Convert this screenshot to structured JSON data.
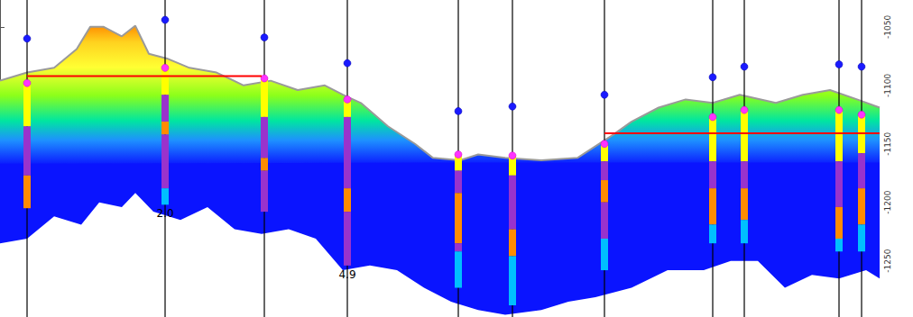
{
  "chart_data": {
    "type": "cross_section",
    "xlim": [
      0,
      975
    ],
    "ylim": [
      -1298,
      -1027
    ],
    "yticks": [
      -1050,
      -1100,
      -1150,
      -1200,
      -1250
    ],
    "tick_labels": "y",
    "grid": false,
    "top_surface": {
      "color": "#9a9a9a",
      "x": [
        0,
        30,
        60,
        85,
        100,
        115,
        135,
        150,
        165,
        185,
        210,
        240,
        270,
        300,
        330,
        360,
        380,
        400,
        430,
        460,
        480,
        510,
        530,
        560,
        600,
        640,
        680,
        700,
        730,
        760,
        790,
        820,
        860,
        890,
        920,
        950,
        975
      ],
      "values": [
        -1096,
        -1089,
        -1085,
        -1069,
        -1050,
        -1050,
        -1058,
        -1049,
        -1073,
        -1077,
        -1085,
        -1089,
        -1100,
        -1096,
        -1104,
        -1100,
        -1108,
        -1115,
        -1135,
        -1150,
        -1162,
        -1164,
        -1159,
        -1162,
        -1164,
        -1162,
        -1142,
        -1131,
        -1119,
        -1112,
        -1115,
        -1108,
        -1115,
        -1108,
        -1104,
        -1112,
        -1119
      ]
    },
    "band_base": {
      "color": "#0a14ff",
      "x": [
        0,
        480,
        975
      ],
      "values": [
        -1167,
        -1166,
        -1166
      ]
    },
    "section_base": {
      "color": "#ffffff",
      "x": [
        0,
        30,
        60,
        90,
        110,
        135,
        150,
        170,
        200,
        230,
        260,
        290,
        320,
        350,
        380,
        410,
        440,
        470,
        500,
        530,
        560,
        600,
        630,
        660,
        700,
        740,
        780,
        810,
        840,
        870,
        900,
        930,
        960,
        975
      ],
      "values": [
        -1235,
        -1231,
        -1212,
        -1219,
        -1200,
        -1204,
        -1192,
        -1208,
        -1215,
        -1204,
        -1223,
        -1227,
        -1223,
        -1231,
        -1258,
        -1254,
        -1258,
        -1273,
        -1285,
        -1292,
        -1296,
        -1292,
        -1285,
        -1281,
        -1273,
        -1258,
        -1258,
        -1250,
        -1250,
        -1273,
        -1262,
        -1265,
        -1258,
        -1265
      ]
    },
    "contacts": [
      {
        "color": "#ff0000",
        "x": [
          30,
          290
        ],
        "values": [
          -1092,
          -1092
        ]
      },
      {
        "color": "#ff0000",
        "x": [
          670,
          975
        ],
        "values": [
          -1141,
          -1141
        ]
      }
    ],
    "wells": [
      {
        "x": 30,
        "marker": -1060,
        "pick": -1098,
        "zones": [
          {
            "top": -1098,
            "base": -1135,
            "color": "#ffff00"
          },
          {
            "top": -1135,
            "base": -1177,
            "color": "#9933cc"
          },
          {
            "top": -1177,
            "base": -1205,
            "color": "#ff8c00"
          }
        ]
      },
      {
        "x": 183,
        "marker": -1044,
        "pick": -1085,
        "label": "2.0",
        "zones": [
          {
            "top": -1085,
            "base": -1108,
            "color": "#ffff00"
          },
          {
            "top": -1108,
            "base": -1131,
            "color": "#9933cc"
          },
          {
            "top": -1131,
            "base": -1142,
            "color": "#ff8c00"
          },
          {
            "top": -1142,
            "base": -1188,
            "color": "#9933cc"
          },
          {
            "top": -1188,
            "base": -1202,
            "color": "#00bfff"
          }
        ]
      },
      {
        "x": 293,
        "marker": -1059,
        "pick": -1094,
        "zones": [
          {
            "top": -1094,
            "base": -1127,
            "color": "#ffff00"
          },
          {
            "top": -1127,
            "base": -1162,
            "color": "#9933cc"
          },
          {
            "top": -1162,
            "base": -1173,
            "color": "#ff8c00"
          },
          {
            "top": -1173,
            "base": -1208,
            "color": "#9933cc"
          }
        ]
      },
      {
        "x": 385,
        "marker": -1081,
        "pick": -1112,
        "label": "4.9",
        "zones": [
          {
            "top": -1112,
            "base": -1127,
            "color": "#ffff00"
          },
          {
            "top": -1127,
            "base": -1188,
            "color": "#9933cc"
          },
          {
            "top": -1188,
            "base": -1208,
            "color": "#ff8c00"
          },
          {
            "top": -1208,
            "base": -1254,
            "color": "#9933cc"
          }
        ]
      },
      {
        "x": 508,
        "marker": -1122,
        "pick": -1159,
        "zones": [
          {
            "top": -1159,
            "base": -1173,
            "color": "#ffff00"
          },
          {
            "top": -1173,
            "base": -1192,
            "color": "#9933cc"
          },
          {
            "top": -1192,
            "base": -1235,
            "color": "#ff8c00"
          },
          {
            "top": -1235,
            "base": -1242,
            "color": "#9933cc"
          },
          {
            "top": -1242,
            "base": -1273,
            "color": "#00bfff"
          }
        ]
      },
      {
        "x": 568,
        "marker": -1118,
        "pick": -1160,
        "zones": [
          {
            "top": -1160,
            "base": -1177,
            "color": "#ffff00"
          },
          {
            "top": -1177,
            "base": -1223,
            "color": "#9933cc"
          },
          {
            "top": -1223,
            "base": -1246,
            "color": "#ff8c00"
          },
          {
            "top": -1246,
            "base": -1288,
            "color": "#00bfff"
          }
        ]
      },
      {
        "x": 670,
        "marker": -1108,
        "pick": -1150,
        "zones": [
          {
            "top": -1150,
            "base": -1165,
            "color": "#ffff00"
          },
          {
            "top": -1165,
            "base": -1181,
            "color": "#9933cc"
          },
          {
            "top": -1181,
            "base": -1200,
            "color": "#ff8c00"
          },
          {
            "top": -1200,
            "base": -1231,
            "color": "#9933cc"
          },
          {
            "top": -1231,
            "base": -1258,
            "color": "#00bfff"
          }
        ]
      },
      {
        "x": 790,
        "marker": -1093,
        "pick": -1127,
        "zones": [
          {
            "top": -1127,
            "base": -1165,
            "color": "#ffff00"
          },
          {
            "top": -1165,
            "base": -1188,
            "color": "#9933cc"
          },
          {
            "top": -1188,
            "base": -1219,
            "color": "#ff8c00"
          },
          {
            "top": -1219,
            "base": -1235,
            "color": "#00bfff"
          }
        ]
      },
      {
        "x": 825,
        "marker": -1084,
        "pick": -1121,
        "zones": [
          {
            "top": -1121,
            "base": -1165,
            "color": "#ffff00"
          },
          {
            "top": -1165,
            "base": -1188,
            "color": "#9933cc"
          },
          {
            "top": -1188,
            "base": -1215,
            "color": "#ff8c00"
          },
          {
            "top": -1215,
            "base": -1235,
            "color": "#00bfff"
          }
        ]
      },
      {
        "x": 930,
        "marker": -1082,
        "pick": -1121,
        "zones": [
          {
            "top": -1121,
            "base": -1165,
            "color": "#ffff00"
          },
          {
            "top": -1165,
            "base": -1204,
            "color": "#9933cc"
          },
          {
            "top": -1204,
            "base": -1231,
            "color": "#ff8c00"
          },
          {
            "top": -1231,
            "base": -1242,
            "color": "#00bfff"
          }
        ]
      },
      {
        "x": 955,
        "marker": -1084,
        "pick": -1125,
        "zones": [
          {
            "top": -1125,
            "base": -1158,
            "color": "#ffff00"
          },
          {
            "top": -1158,
            "base": -1188,
            "color": "#9933cc"
          },
          {
            "top": -1188,
            "base": -1219,
            "color": "#ff8c00"
          },
          {
            "top": -1219,
            "base": -1242,
            "color": "#00bfff"
          }
        ]
      }
    ]
  }
}
